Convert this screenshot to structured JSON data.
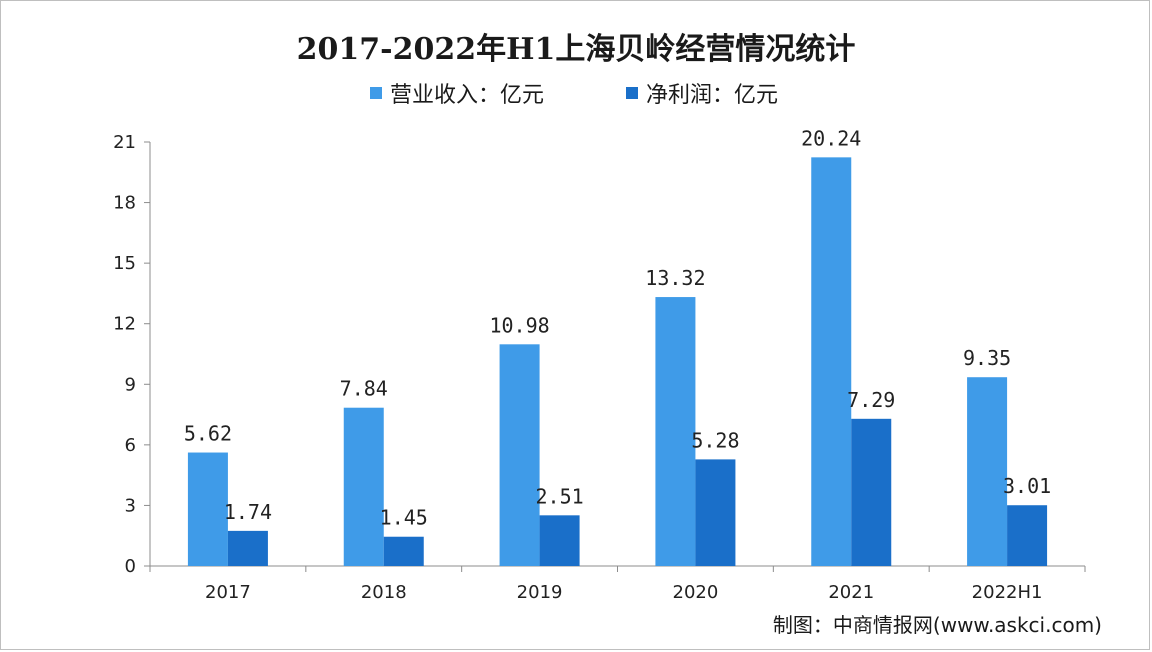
{
  "chart_data": {
    "type": "bar",
    "title": "2017-2022年H1上海贝岭经营情况统计",
    "categories": [
      "2017",
      "2018",
      "2019",
      "2020",
      "2021",
      "2022H1"
    ],
    "series": [
      {
        "name": "营业收入：亿元",
        "values": [
          5.62,
          7.84,
          10.98,
          13.32,
          20.24,
          9.35
        ],
        "color": "#3f9be8"
      },
      {
        "name": "净利润：亿元",
        "values": [
          1.74,
          1.45,
          2.51,
          5.28,
          7.29,
          3.01
        ],
        "color": "#1a6fc9"
      }
    ],
    "yticks": [
      "0",
      "3",
      "6",
      "9",
      "12",
      "15",
      "18",
      "21"
    ],
    "ylim": [
      0,
      21
    ],
    "grid": false,
    "legend": "top-center",
    "source": "制图：中商情报网(www.askci.com)"
  }
}
